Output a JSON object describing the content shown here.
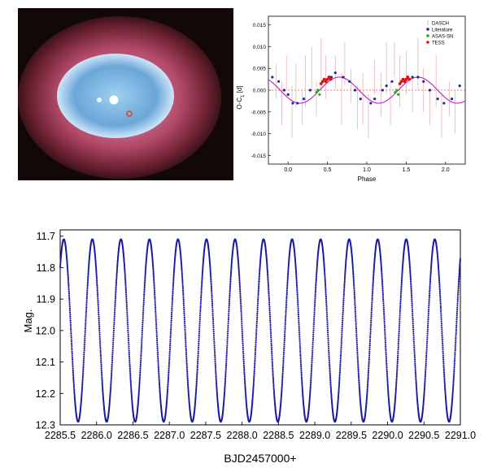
{
  "nebula_image": {
    "description_icon": "planetary-nebula-photo",
    "colors": {
      "background": "#120808",
      "shell": "#b34a6a",
      "cavity": "#6aa6d8",
      "marker": "#e04020"
    }
  },
  "chart_data": [
    {
      "type": "scatter",
      "title": "",
      "xlabel": "Phase",
      "ylabel": "O-C",
      "ylabel_sub": "1",
      "ylabel_unit": " [d]",
      "xlim": [
        -0.25,
        2.25
      ],
      "ylim": [
        -0.017,
        0.017
      ],
      "xticks": [
        0.0,
        0.5,
        1.0,
        1.5,
        2.0
      ],
      "xtick_labels": [
        "0.0",
        "0.5",
        "1.0",
        "1.5",
        "2.0"
      ],
      "yticks": [
        -0.015,
        -0.01,
        -0.005,
        0.0,
        0.005,
        0.01,
        0.015
      ],
      "ytick_labels": [
        "-0.015",
        "-0.010",
        "-0.005",
        "0.000",
        "0.005",
        "0.010",
        "0.015"
      ],
      "legend_position": "top-right",
      "grid": false,
      "fit": {
        "color": "#c020c0",
        "amplitude": 0.003,
        "offset": 0.0,
        "phase_of_max": 0.65
      },
      "zero_line": {
        "y": 0.0,
        "color": "#e05050"
      },
      "series": [
        {
          "name": "DASCH",
          "color": "#e8b4b4",
          "marker": "errorbar",
          "x": [
            -0.15,
            -0.08,
            -0.02,
            0.05,
            0.1,
            0.18,
            0.22,
            0.3,
            0.36,
            0.42,
            0.48,
            0.6,
            0.68,
            0.72,
            0.8,
            0.88,
            0.95,
            1.02,
            1.1,
            1.18,
            1.25,
            1.3,
            1.35,
            1.42,
            1.5,
            1.58,
            1.65,
            1.72,
            1.8,
            1.88,
            1.95,
            2.05,
            2.12
          ],
          "y": [
            0.002,
            -0.003,
            0.004,
            -0.005,
            0.001,
            -0.004,
            0.002,
            0.005,
            -0.002,
            0.006,
            0.003,
            0.004,
            -0.002,
            0.006,
            0.001,
            -0.004,
            -0.002,
            -0.006,
            0.003,
            -0.001,
            0.005,
            -0.003,
            0.007,
            0.002,
            0.004,
            -0.001,
            0.006,
            0.0,
            -0.004,
            0.002,
            -0.006,
            -0.002,
            -0.005
          ],
          "err": [
            0.004,
            0.005,
            0.004,
            0.006,
            0.005,
            0.004,
            0.006,
            0.005,
            0.004,
            0.006,
            0.005,
            0.004,
            0.006,
            0.005,
            0.004,
            0.005,
            0.006,
            0.005,
            0.004,
            0.005,
            0.006,
            0.005,
            0.004,
            0.006,
            0.005,
            0.004,
            0.006,
            0.005,
            0.004,
            0.006,
            0.005,
            0.004,
            0.005
          ]
        },
        {
          "name": "Literature",
          "color": "#1a2a9a",
          "marker": "circle",
          "x": [
            -0.2,
            -0.12,
            -0.05,
            0.0,
            0.06,
            0.12,
            0.2,
            0.28,
            0.55,
            0.6,
            0.7,
            0.78,
            0.85,
            0.92,
            1.05,
            1.1,
            1.2,
            1.25,
            1.32,
            1.58,
            1.65,
            1.72,
            1.8,
            1.9,
            1.98,
            2.08,
            2.18
          ],
          "y": [
            0.003,
            0.002,
            0.0,
            -0.001,
            -0.003,
            -0.003,
            -0.002,
            0.0,
            0.003,
            0.004,
            0.003,
            0.002,
            0.0,
            -0.002,
            -0.003,
            -0.002,
            0.0,
            0.001,
            0.002,
            0.003,
            0.003,
            0.002,
            0.0,
            -0.002,
            -0.003,
            -0.002,
            0.001
          ]
        },
        {
          "name": "ASAS-SN",
          "color": "#22aa22",
          "marker": "circle",
          "x": [
            0.36,
            0.38,
            0.4,
            1.36,
            1.38,
            1.4
          ],
          "y": [
            -0.0005,
            0.0,
            -0.001,
            -0.0005,
            0.0,
            -0.001
          ]
        },
        {
          "name": "TESS",
          "color": "#dd1111",
          "marker": "circle",
          "x": [
            0.42,
            0.44,
            0.46,
            0.48,
            0.5,
            0.52,
            0.54,
            1.42,
            1.44,
            1.46,
            1.48,
            1.5,
            1.52,
            1.54
          ],
          "y": [
            0.0015,
            0.002,
            0.0025,
            0.002,
            0.0025,
            0.003,
            0.0025,
            0.0015,
            0.002,
            0.0025,
            0.002,
            0.0025,
            0.003,
            0.0025
          ]
        }
      ]
    },
    {
      "type": "scatter",
      "title": "",
      "xlabel": "BJD2457000+",
      "ylabel": "Mag.",
      "xlim": [
        2285.5,
        2291.0
      ],
      "ylim": [
        12.3,
        11.68
      ],
      "y_inverted": true,
      "xticks": [
        2285.5,
        2286.0,
        2286.5,
        2287.0,
        2287.5,
        2288.0,
        2288.5,
        2289.0,
        2289.5,
        2290.0,
        2290.5,
        2291.0
      ],
      "xtick_labels": [
        "2285.5",
        "2286.0",
        "2286.5",
        "2287.0",
        "2287.5",
        "2288.0",
        "2288.5",
        "2289.0",
        "2289.5",
        "2290.0",
        "2290.5",
        "2291.0"
      ],
      "yticks": [
        11.7,
        11.8,
        11.9,
        12.0,
        12.1,
        12.2,
        12.3
      ],
      "ytick_labels": [
        "11.7",
        "11.8",
        "11.9",
        "12.0",
        "12.1",
        "12.2",
        "12.3"
      ],
      "grid": false,
      "series": [
        {
          "name": "",
          "color": "#1a1aa0",
          "marker": "dot",
          "model": {
            "mean": 12.0,
            "amplitude": 0.29,
            "period": 0.3922,
            "t_max_brightness": 2285.55,
            "cadence": 0.0014
          }
        }
      ]
    }
  ]
}
